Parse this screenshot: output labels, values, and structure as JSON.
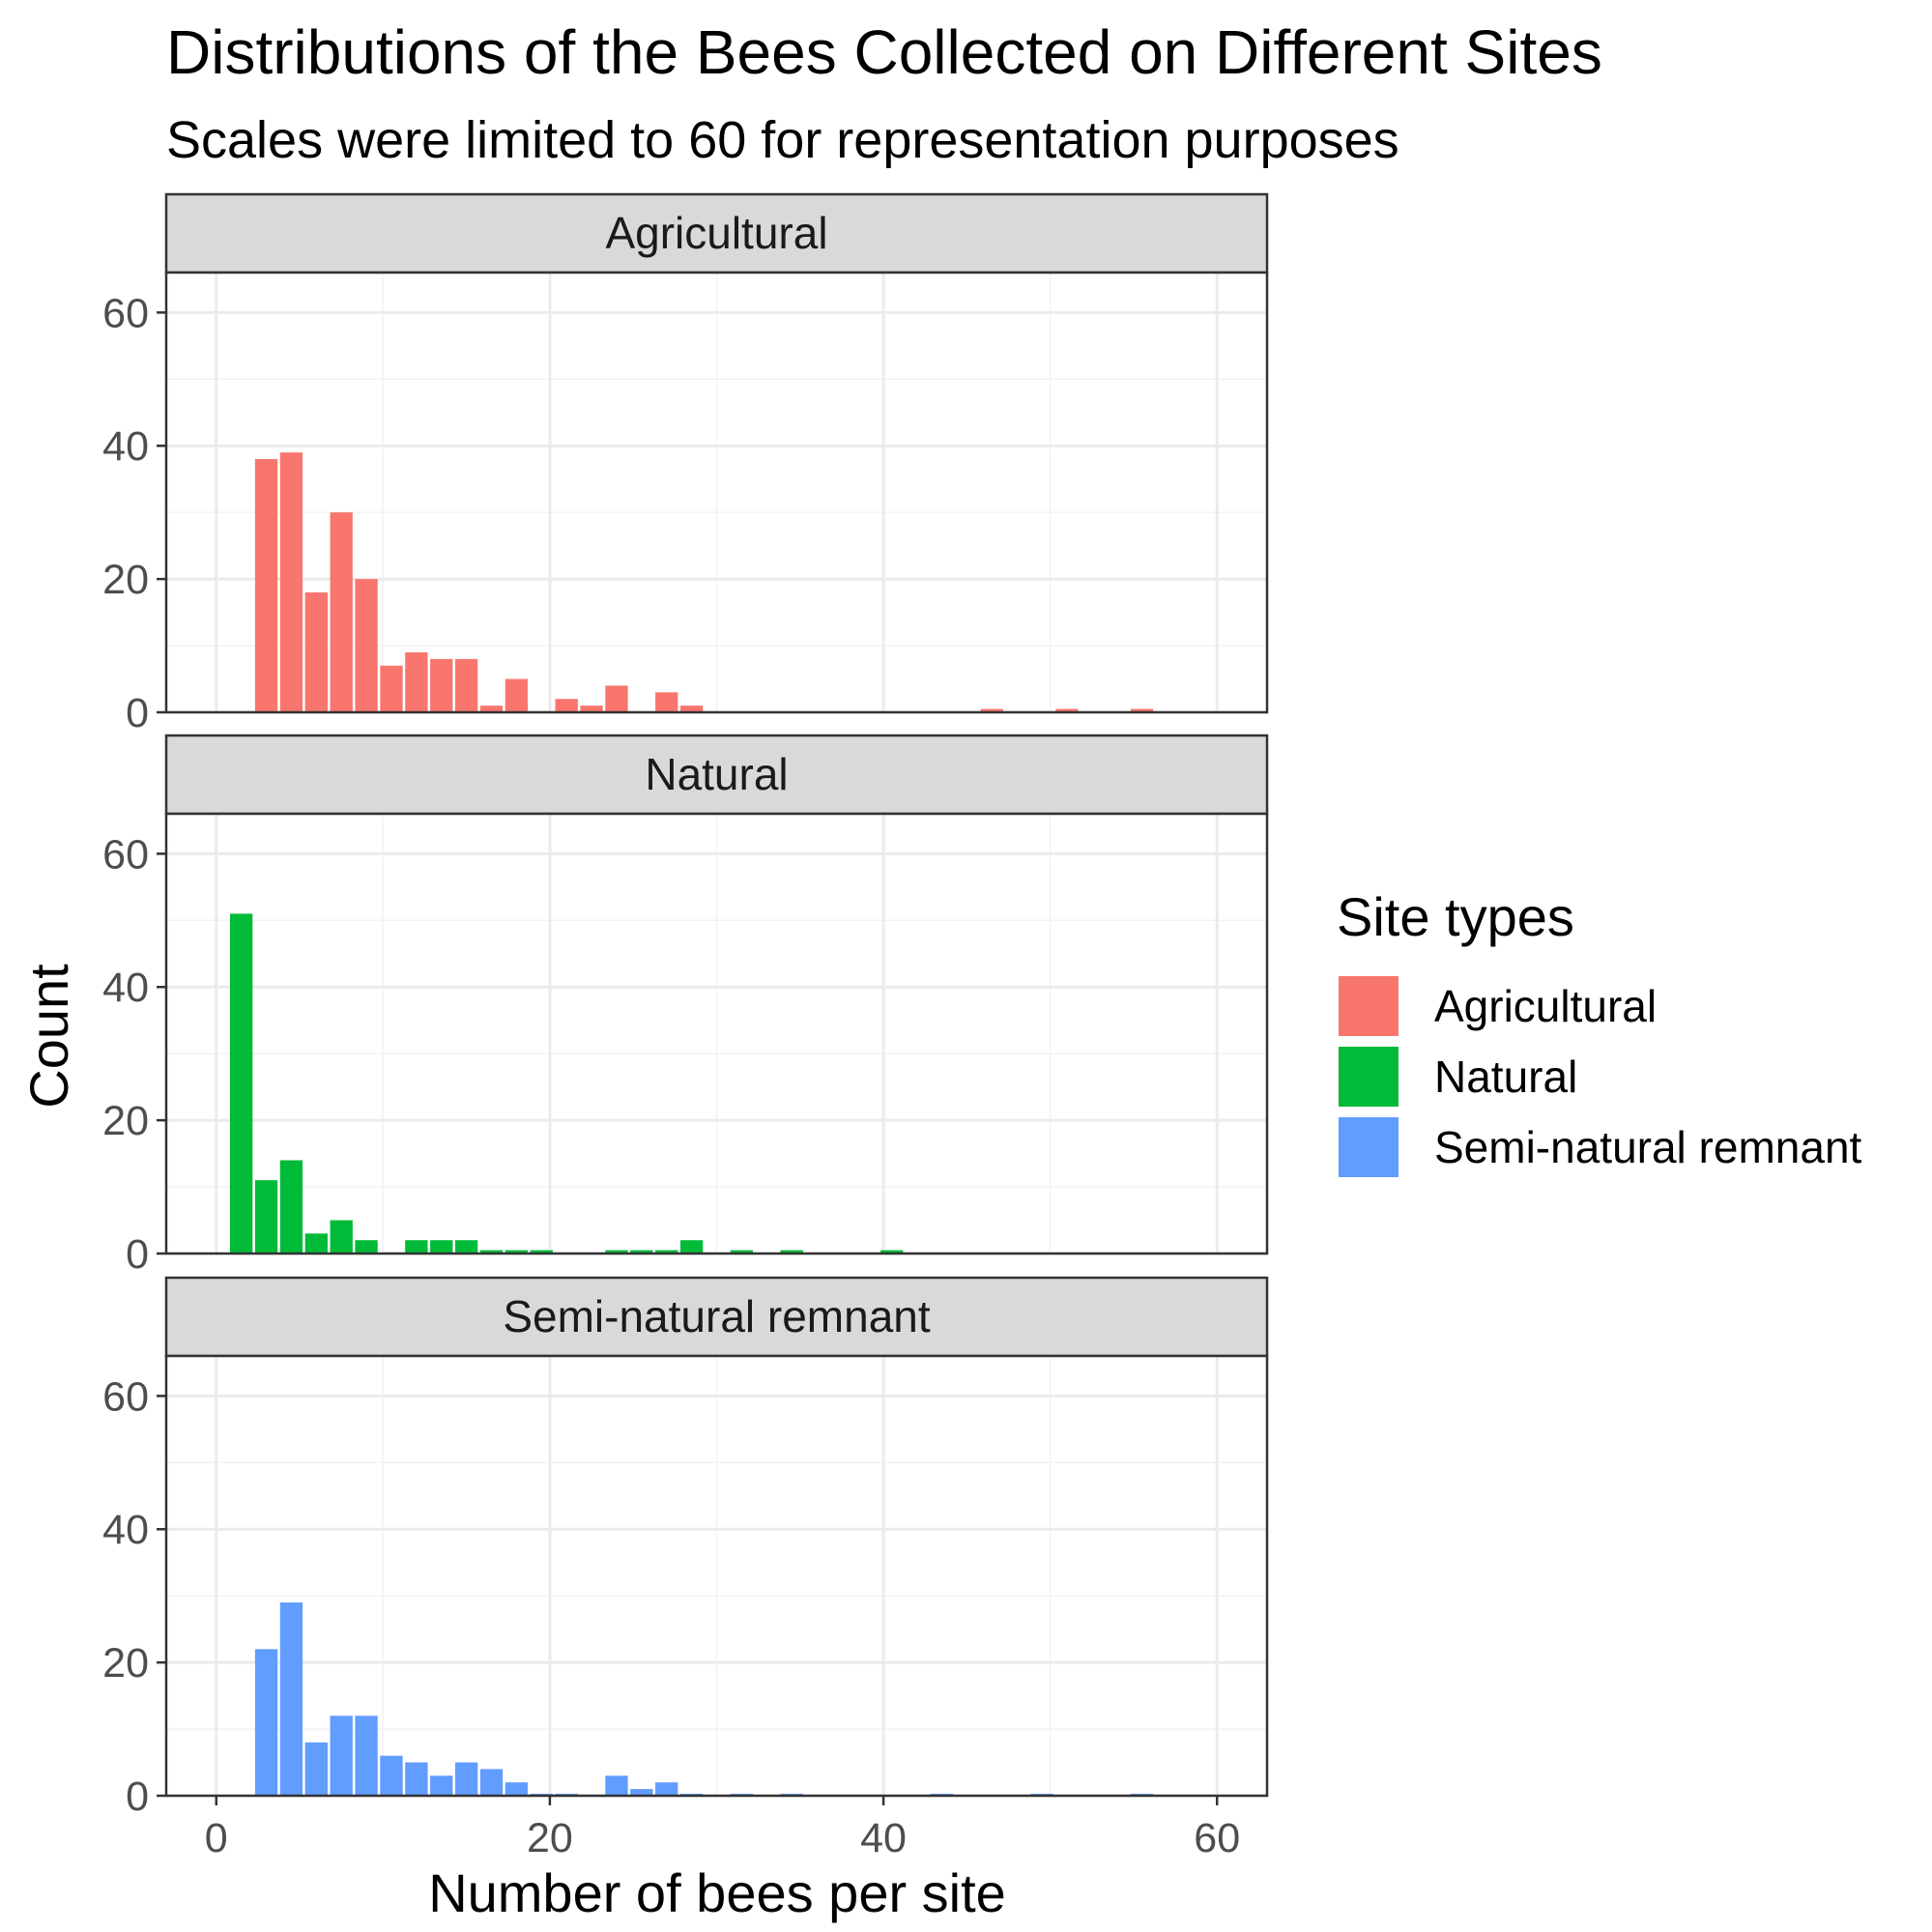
{
  "chart_data": {
    "type": "bar",
    "title": "Distributions of the Bees Collected on Different Sites",
    "subtitle": "Scales were limited to 60 for representation purposes",
    "xlabel": "Number of bees per site",
    "ylabel": "Count",
    "xlim": [
      -3,
      63
    ],
    "ylim": [
      0,
      66
    ],
    "x_ticks": [
      "0",
      "20",
      "40",
      "60"
    ],
    "y_ticks": [
      "0",
      "20",
      "40",
      "60"
    ],
    "grid": true,
    "legend": {
      "title": "Site types",
      "placement": "right",
      "items": [
        {
          "label": "Agricultural",
          "color": "#F8766D"
        },
        {
          "label": "Natural",
          "color": "#00BA38"
        },
        {
          "label": "Semi-natural remnant",
          "color": "#619CFF"
        }
      ]
    },
    "facets": [
      {
        "label": "Agricultural",
        "color": "#F8766D",
        "bars": [
          {
            "x": 3,
            "y": 38
          },
          {
            "x": 4.5,
            "y": 39
          },
          {
            "x": 6,
            "y": 18
          },
          {
            "x": 7.5,
            "y": 30
          },
          {
            "x": 9,
            "y": 20
          },
          {
            "x": 10.5,
            "y": 7
          },
          {
            "x": 12,
            "y": 9
          },
          {
            "x": 13.5,
            "y": 8
          },
          {
            "x": 15,
            "y": 8
          },
          {
            "x": 16.5,
            "y": 1
          },
          {
            "x": 18,
            "y": 5
          },
          {
            "x": 21,
            "y": 2
          },
          {
            "x": 22.5,
            "y": 1
          },
          {
            "x": 24,
            "y": 4
          },
          {
            "x": 27,
            "y": 3
          },
          {
            "x": 28.5,
            "y": 1
          },
          {
            "x": 46.5,
            "y": 0.5
          },
          {
            "x": 51,
            "y": 0.5
          },
          {
            "x": 55.5,
            "y": 0.5
          }
        ]
      },
      {
        "label": "Natural",
        "color": "#00BA38",
        "bars": [
          {
            "x": 1.5,
            "y": 51
          },
          {
            "x": 3,
            "y": 11
          },
          {
            "x": 4.5,
            "y": 14
          },
          {
            "x": 6,
            "y": 3
          },
          {
            "x": 7.5,
            "y": 5
          },
          {
            "x": 9,
            "y": 2
          },
          {
            "x": 12,
            "y": 2
          },
          {
            "x": 13.5,
            "y": 2
          },
          {
            "x": 15,
            "y": 2
          },
          {
            "x": 16.5,
            "y": 0.5
          },
          {
            "x": 18,
            "y": 0.5
          },
          {
            "x": 19.5,
            "y": 0.5
          },
          {
            "x": 24,
            "y": 0.5
          },
          {
            "x": 25.5,
            "y": 0.5
          },
          {
            "x": 27,
            "y": 0.5
          },
          {
            "x": 28.5,
            "y": 2
          },
          {
            "x": 31.5,
            "y": 0.5
          },
          {
            "x": 34.5,
            "y": 0.5
          },
          {
            "x": 40.5,
            "y": 0.5
          }
        ]
      },
      {
        "label": "Semi-natural remnant",
        "color": "#619CFF",
        "bars": [
          {
            "x": 3,
            "y": 22
          },
          {
            "x": 4.5,
            "y": 29
          },
          {
            "x": 6,
            "y": 8
          },
          {
            "x": 7.5,
            "y": 12
          },
          {
            "x": 9,
            "y": 12
          },
          {
            "x": 10.5,
            "y": 6
          },
          {
            "x": 12,
            "y": 5
          },
          {
            "x": 13.5,
            "y": 3
          },
          {
            "x": 15,
            "y": 5
          },
          {
            "x": 16.5,
            "y": 4
          },
          {
            "x": 18,
            "y": 2
          },
          {
            "x": 19.5,
            "y": 0.3
          },
          {
            "x": 21,
            "y": 0.3
          },
          {
            "x": 24,
            "y": 3
          },
          {
            "x": 25.5,
            "y": 1
          },
          {
            "x": 27,
            "y": 2
          },
          {
            "x": 28.5,
            "y": 0.3
          },
          {
            "x": 31.5,
            "y": 0.3
          },
          {
            "x": 34.5,
            "y": 0.3
          },
          {
            "x": 43.5,
            "y": 0.3
          },
          {
            "x": 49.5,
            "y": 0.3
          },
          {
            "x": 55.5,
            "y": 0.3
          }
        ]
      }
    ]
  }
}
